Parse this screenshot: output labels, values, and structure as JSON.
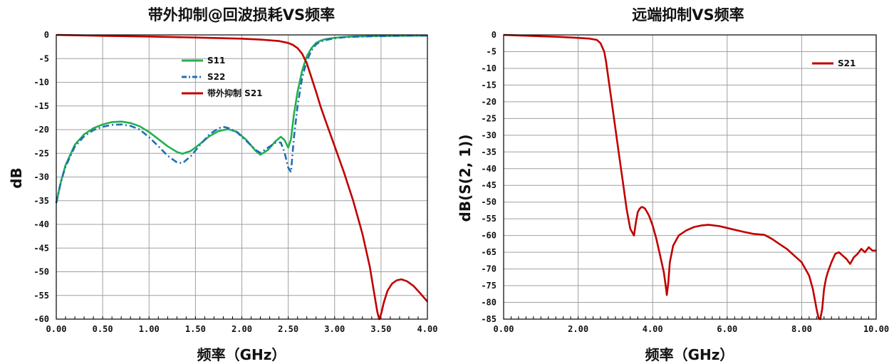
{
  "colors": {
    "s11": "#22b14c",
    "s22": "#1f6fb5",
    "s21": "#c00000",
    "grid": "#a0a0a0"
  },
  "chart_data": [
    {
      "type": "line",
      "title": "带外抑制@回波损耗VS频率",
      "xlabel": "频率（GHz）",
      "ylabel": "dB",
      "xlim": [
        0,
        4
      ],
      "ylim": [
        -60,
        0
      ],
      "xticks": [
        "0.00",
        "0.50",
        "1.00",
        "1.50",
        "2.00",
        "2.50",
        "3.00",
        "3.50",
        "4.00"
      ],
      "yticks": [
        "0",
        "-5",
        "-10",
        "-15",
        "-20",
        "-25",
        "-30",
        "-35",
        "-40",
        "-45",
        "-50",
        "-55",
        "-60"
      ],
      "grid": true,
      "legend_position": "top-center",
      "series": [
        {
          "name": "S11",
          "style": "solid",
          "color": "#22b14c",
          "x": [
            0,
            0.05,
            0.1,
            0.2,
            0.3,
            0.4,
            0.5,
            0.6,
            0.7,
            0.8,
            0.9,
            1.0,
            1.1,
            1.2,
            1.3,
            1.36,
            1.45,
            1.55,
            1.65,
            1.75,
            1.85,
            1.95,
            2.05,
            2.15,
            2.2,
            2.28,
            2.36,
            2.42,
            2.46,
            2.5,
            2.53,
            2.56,
            2.6,
            2.65,
            2.7,
            2.75,
            2.8,
            2.85,
            2.9,
            3.0,
            3.1,
            3.2,
            3.4,
            3.7,
            4.0
          ],
          "y": [
            -35.5,
            -31,
            -27.5,
            -23.2,
            -21,
            -19.7,
            -18.9,
            -18.4,
            -18.3,
            -18.6,
            -19.3,
            -20.5,
            -22,
            -23.5,
            -24.7,
            -25.1,
            -24.5,
            -23,
            -21.4,
            -20.3,
            -19.9,
            -20.5,
            -22.2,
            -24.5,
            -25.3,
            -24.3,
            -22.5,
            -21.5,
            -22.2,
            -23.8,
            -22,
            -17,
            -12,
            -7.5,
            -4.5,
            -2.8,
            -1.7,
            -1.2,
            -0.9,
            -0.6,
            -0.45,
            -0.35,
            -0.25,
            -0.2,
            -0.15
          ]
        },
        {
          "name": "S22",
          "style": "dashdot",
          "color": "#1f6fb5",
          "x": [
            0,
            0.05,
            0.1,
            0.2,
            0.3,
            0.4,
            0.5,
            0.6,
            0.7,
            0.8,
            0.9,
            1.0,
            1.1,
            1.2,
            1.3,
            1.36,
            1.45,
            1.55,
            1.65,
            1.75,
            1.8,
            1.88,
            1.95,
            2.05,
            2.15,
            2.2,
            2.28,
            2.36,
            2.42,
            2.46,
            2.5,
            2.53,
            2.56,
            2.6,
            2.65,
            2.7,
            2.75,
            2.8,
            2.85,
            2.9,
            3.0,
            3.1,
            3.2,
            3.4,
            3.7,
            4.0
          ],
          "y": [
            -35.5,
            -31,
            -27.8,
            -23.6,
            -21.4,
            -20.1,
            -19.4,
            -19,
            -18.9,
            -19.2,
            -20,
            -21.6,
            -23.5,
            -25.5,
            -26.9,
            -27.1,
            -25.6,
            -23.2,
            -21,
            -19.7,
            -19.4,
            -19.8,
            -20.6,
            -22.4,
            -24.3,
            -24.9,
            -23.8,
            -22.8,
            -22.7,
            -24.8,
            -28,
            -29,
            -22,
            -15,
            -9,
            -5.5,
            -3.3,
            -2,
            -1.4,
            -1.1,
            -0.7,
            -0.5,
            -0.4,
            -0.3,
            -0.2,
            -0.15
          ]
        },
        {
          "name": "带外抑制 S21",
          "style": "solid",
          "color": "#c00000",
          "x": [
            0,
            0.5,
            1.0,
            1.5,
            2.0,
            2.2,
            2.4,
            2.5,
            2.55,
            2.6,
            2.65,
            2.7,
            2.75,
            2.8,
            2.85,
            2.9,
            3.0,
            3.1,
            3.2,
            3.3,
            3.38,
            3.43,
            3.46,
            3.48,
            3.5,
            3.53,
            3.57,
            3.62,
            3.67,
            3.72,
            3.78,
            3.85,
            3.92,
            4.0
          ],
          "y": [
            0,
            -0.2,
            -0.35,
            -0.55,
            -0.8,
            -1.0,
            -1.3,
            -1.7,
            -2.1,
            -2.8,
            -4,
            -6,
            -9,
            -12,
            -15.2,
            -18,
            -23.5,
            -29,
            -35,
            -42,
            -49,
            -55,
            -58.5,
            -60,
            -59,
            -56.5,
            -54,
            -52.5,
            -51.8,
            -51.6,
            -52,
            -53,
            -54.5,
            -56.3
          ]
        }
      ]
    },
    {
      "type": "line",
      "title": "远端抑制VS频率",
      "xlabel": "频率（GHz）",
      "ylabel": "dB(S(2, 1))",
      "xlim": [
        0,
        10
      ],
      "ylim": [
        -85,
        0
      ],
      "xticks": [
        "0.00",
        "2.00",
        "4.00",
        "6.00",
        "8.00",
        "10.00"
      ],
      "yticks": [
        "0",
        "-5",
        "-10",
        "-15",
        "-20",
        "-25",
        "-30",
        "-35",
        "-40",
        "-45",
        "-50",
        "-55",
        "-60",
        "-65",
        "-70",
        "-75",
        "-80",
        "-85"
      ],
      "grid": true,
      "legend_position": "top-right",
      "series": [
        {
          "name": "S21",
          "style": "solid",
          "color": "#c00000",
          "x": [
            0,
            0.5,
            1.0,
            1.5,
            2.0,
            2.3,
            2.5,
            2.6,
            2.7,
            2.75,
            2.8,
            2.9,
            3.0,
            3.1,
            3.2,
            3.3,
            3.4,
            3.5,
            3.55,
            3.6,
            3.65,
            3.7,
            3.75,
            3.8,
            3.9,
            4.0,
            4.1,
            4.2,
            4.3,
            4.35,
            4.38,
            4.42,
            4.46,
            4.55,
            4.7,
            4.9,
            5.1,
            5.3,
            5.5,
            5.8,
            6.1,
            6.4,
            6.7,
            7.0,
            7.2,
            7.4,
            7.6,
            7.8,
            8.0,
            8.2,
            8.3,
            8.4,
            8.45,
            8.5,
            8.55,
            8.6,
            8.65,
            8.7,
            8.8,
            8.9,
            9.0,
            9.1,
            9.2,
            9.3,
            9.4,
            9.5,
            9.6,
            9.7,
            9.8,
            9.9,
            10.0
          ],
          "y": [
            0,
            -0.2,
            -0.4,
            -0.6,
            -0.9,
            -1.1,
            -1.5,
            -2.5,
            -5,
            -8,
            -12,
            -20,
            -28,
            -36,
            -44,
            -52,
            -58,
            -60,
            -56,
            -53,
            -52,
            -51.5,
            -51.6,
            -52,
            -54,
            -57,
            -61,
            -66,
            -71,
            -75,
            -77.8,
            -74,
            -68,
            -63,
            -60,
            -58.5,
            -57.5,
            -57,
            -56.8,
            -57.2,
            -58,
            -58.8,
            -59.5,
            -59.8,
            -61,
            -62.5,
            -64,
            -66,
            -68,
            -72,
            -76,
            -82,
            -84.5,
            -85,
            -82,
            -76,
            -73,
            -71,
            -68,
            -65.5,
            -65,
            -66,
            -67,
            -68.5,
            -66.5,
            -65.5,
            -64,
            -65,
            -63.5,
            -64.5,
            -64.5
          ]
        }
      ]
    }
  ]
}
